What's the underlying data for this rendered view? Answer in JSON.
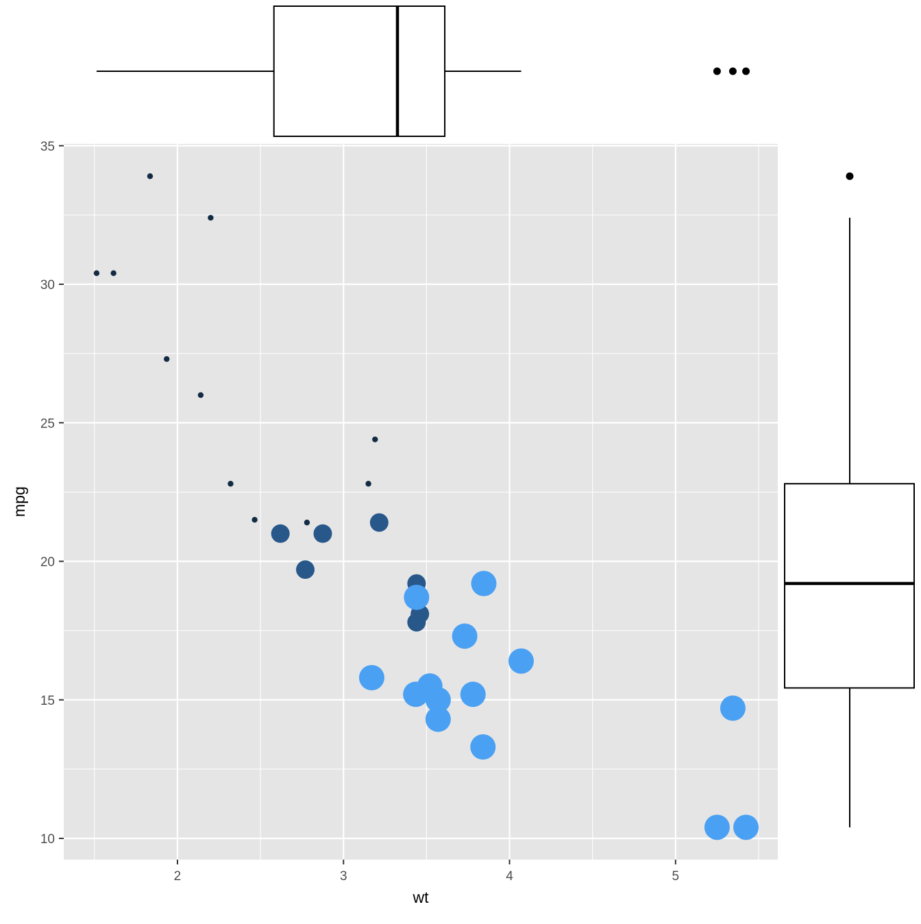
{
  "chart_data": {
    "type": "scatter",
    "subtype": "marginal-boxplot-scatter",
    "title": "",
    "xlabel": "wt",
    "ylabel": "mpg",
    "xlim": [
      1.35,
      5.6
    ],
    "ylim": [
      9.4,
      35.2
    ],
    "x_ticks": [
      2,
      3,
      4,
      5
    ],
    "x_tick_labels": [
      "2",
      "3",
      "4",
      "5"
    ],
    "y_ticks": [
      10,
      15,
      20,
      25,
      30,
      35
    ],
    "y_tick_labels": [
      "10",
      "15",
      "20",
      "25",
      "30",
      "35"
    ],
    "grid": true,
    "legend": "none",
    "colors": {
      "panel_background": "#e5e5e5",
      "grid": "#ffffff",
      "group_4_cyl": "#132b43",
      "group_6_cyl": "#28578a",
      "group_8_cyl": "#4aa0f2",
      "boxplot_line": "#000000",
      "boxplot_fill": "#ffffff"
    },
    "points": [
      {
        "x": 1.513,
        "y": 30.4,
        "group": 4
      },
      {
        "x": 1.615,
        "y": 30.4,
        "group": 4
      },
      {
        "x": 1.835,
        "y": 33.9,
        "group": 4
      },
      {
        "x": 1.935,
        "y": 27.3,
        "group": 4
      },
      {
        "x": 2.14,
        "y": 26.0,
        "group": 4
      },
      {
        "x": 2.2,
        "y": 32.4,
        "group": 4
      },
      {
        "x": 2.32,
        "y": 22.8,
        "group": 4
      },
      {
        "x": 2.465,
        "y": 21.5,
        "group": 4
      },
      {
        "x": 2.78,
        "y": 21.4,
        "group": 4
      },
      {
        "x": 3.15,
        "y": 22.8,
        "group": 4
      },
      {
        "x": 3.19,
        "y": 24.4,
        "group": 4
      },
      {
        "x": 2.62,
        "y": 21.0,
        "group": 6
      },
      {
        "x": 2.77,
        "y": 19.7,
        "group": 6
      },
      {
        "x": 2.875,
        "y": 21.0,
        "group": 6
      },
      {
        "x": 3.215,
        "y": 21.4,
        "group": 6
      },
      {
        "x": 3.44,
        "y": 19.2,
        "group": 6
      },
      {
        "x": 3.44,
        "y": 17.8,
        "group": 6
      },
      {
        "x": 3.46,
        "y": 18.1,
        "group": 6
      },
      {
        "x": 3.17,
        "y": 15.8,
        "group": 8
      },
      {
        "x": 3.435,
        "y": 15.2,
        "group": 8
      },
      {
        "x": 3.44,
        "y": 18.7,
        "group": 8
      },
      {
        "x": 3.52,
        "y": 15.5,
        "group": 8
      },
      {
        "x": 3.57,
        "y": 15.0,
        "group": 8
      },
      {
        "x": 3.57,
        "y": 14.3,
        "group": 8
      },
      {
        "x": 3.73,
        "y": 17.3,
        "group": 8
      },
      {
        "x": 3.78,
        "y": 15.2,
        "group": 8
      },
      {
        "x": 3.84,
        "y": 13.3,
        "group": 8
      },
      {
        "x": 3.845,
        "y": 19.2,
        "group": 8
      },
      {
        "x": 4.07,
        "y": 16.4,
        "group": 8
      },
      {
        "x": 5.25,
        "y": 10.4,
        "group": 8
      },
      {
        "x": 5.345,
        "y": 14.7,
        "group": 8
      },
      {
        "x": 5.424,
        "y": 10.4,
        "group": 8
      }
    ],
    "marginal_boxplots": {
      "x": {
        "variable": "wt",
        "whisker_low": 1.513,
        "q1": 2.581,
        "median": 3.325,
        "q3": 3.61,
        "whisker_high": 4.07,
        "outliers": [
          5.25,
          5.345,
          5.424
        ]
      },
      "y": {
        "variable": "mpg",
        "whisker_low": 10.4,
        "q1": 15.43,
        "median": 19.2,
        "q3": 22.8,
        "whisker_high": 32.4,
        "outliers": [
          33.9
        ]
      }
    }
  }
}
